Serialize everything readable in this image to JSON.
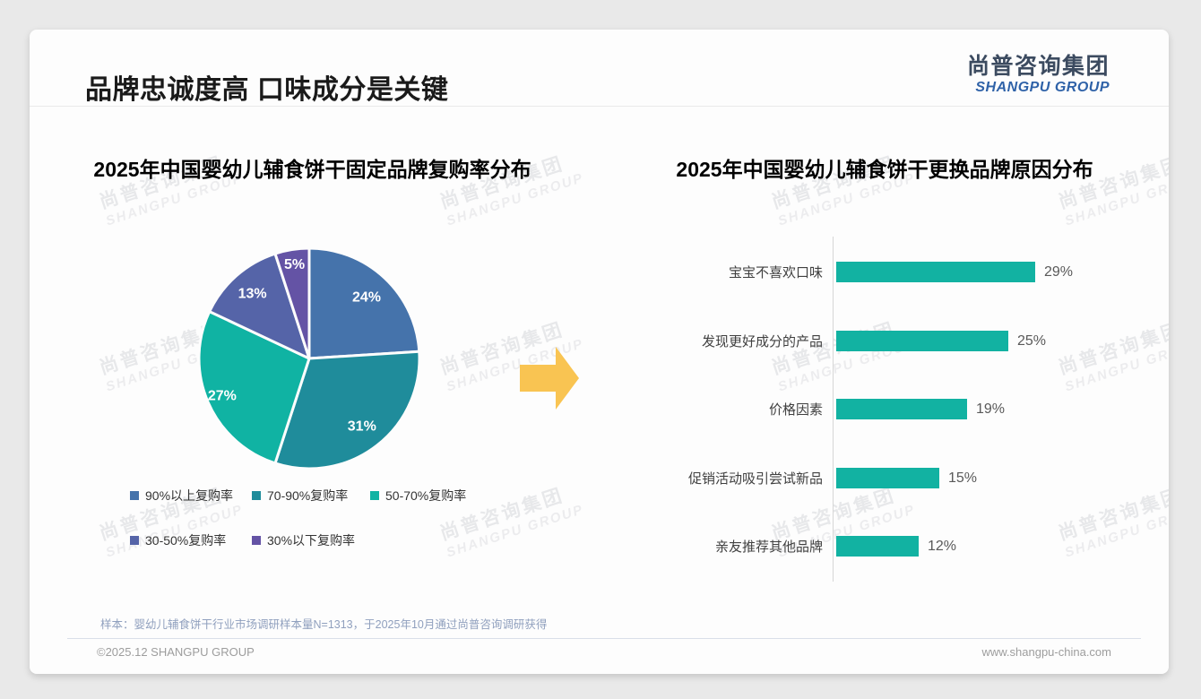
{
  "page": {
    "header": {
      "title": "品牌忠诚度高 口味成分是关键"
    },
    "logo": {
      "cn": "尚普咨询集团",
      "en": "SHANGPU GROUP"
    },
    "watermark": {
      "cn": "尚普咨询集团",
      "en": "SHANGPU GROUP"
    },
    "footer": {
      "sample_note": "样本：婴幼儿辅食饼干行业市场调研样本量N=1313，于2025年10月通过尚普咨询调研获得",
      "copyright": "©2025.12 SHANGPU GROUP",
      "website": "www.shangpu-china.com"
    },
    "colors": {
      "arrow": "#f9c452",
      "logo_cn": "#3c4b60",
      "logo_en": "#2f62a8",
      "bar": "#12b2a2"
    }
  },
  "chart_data": [
    {
      "type": "pie",
      "title": "2025年中国婴幼儿辅食饼干固定品牌复购率分布",
      "labels": [
        "90%以上复购率",
        "70-90%复购率",
        "50-70%复购率",
        "30-50%复购率",
        "30%以下复购率"
      ],
      "values": [
        24,
        31,
        27,
        13,
        5
      ],
      "colors": [
        "#4573ab",
        "#1f8c9b",
        "#10b3a3",
        "#5564a8",
        "#6453a5"
      ],
      "data_labels": [
        "24%",
        "31%",
        "27%",
        "13%",
        "5%"
      ],
      "start_angle_deg": 0,
      "direction": "clockwise",
      "legend_position": "bottom"
    },
    {
      "type": "bar",
      "orientation": "horizontal",
      "title": "2025年中国婴幼儿辅食饼干更换品牌原因分布",
      "categories": [
        "宝宝不喜欢口味",
        "发现更好成分的产品",
        "价格因素",
        "促销活动吸引尝试新品",
        "亲友推荐其他品牌"
      ],
      "values": [
        29,
        25,
        19,
        15,
        12
      ],
      "value_labels": [
        "29%",
        "25%",
        "19%",
        "15%",
        "12%"
      ],
      "bar_color": "#12b2a2",
      "xlim": [
        0,
        32
      ],
      "grid": false,
      "legend_position": "none"
    }
  ]
}
